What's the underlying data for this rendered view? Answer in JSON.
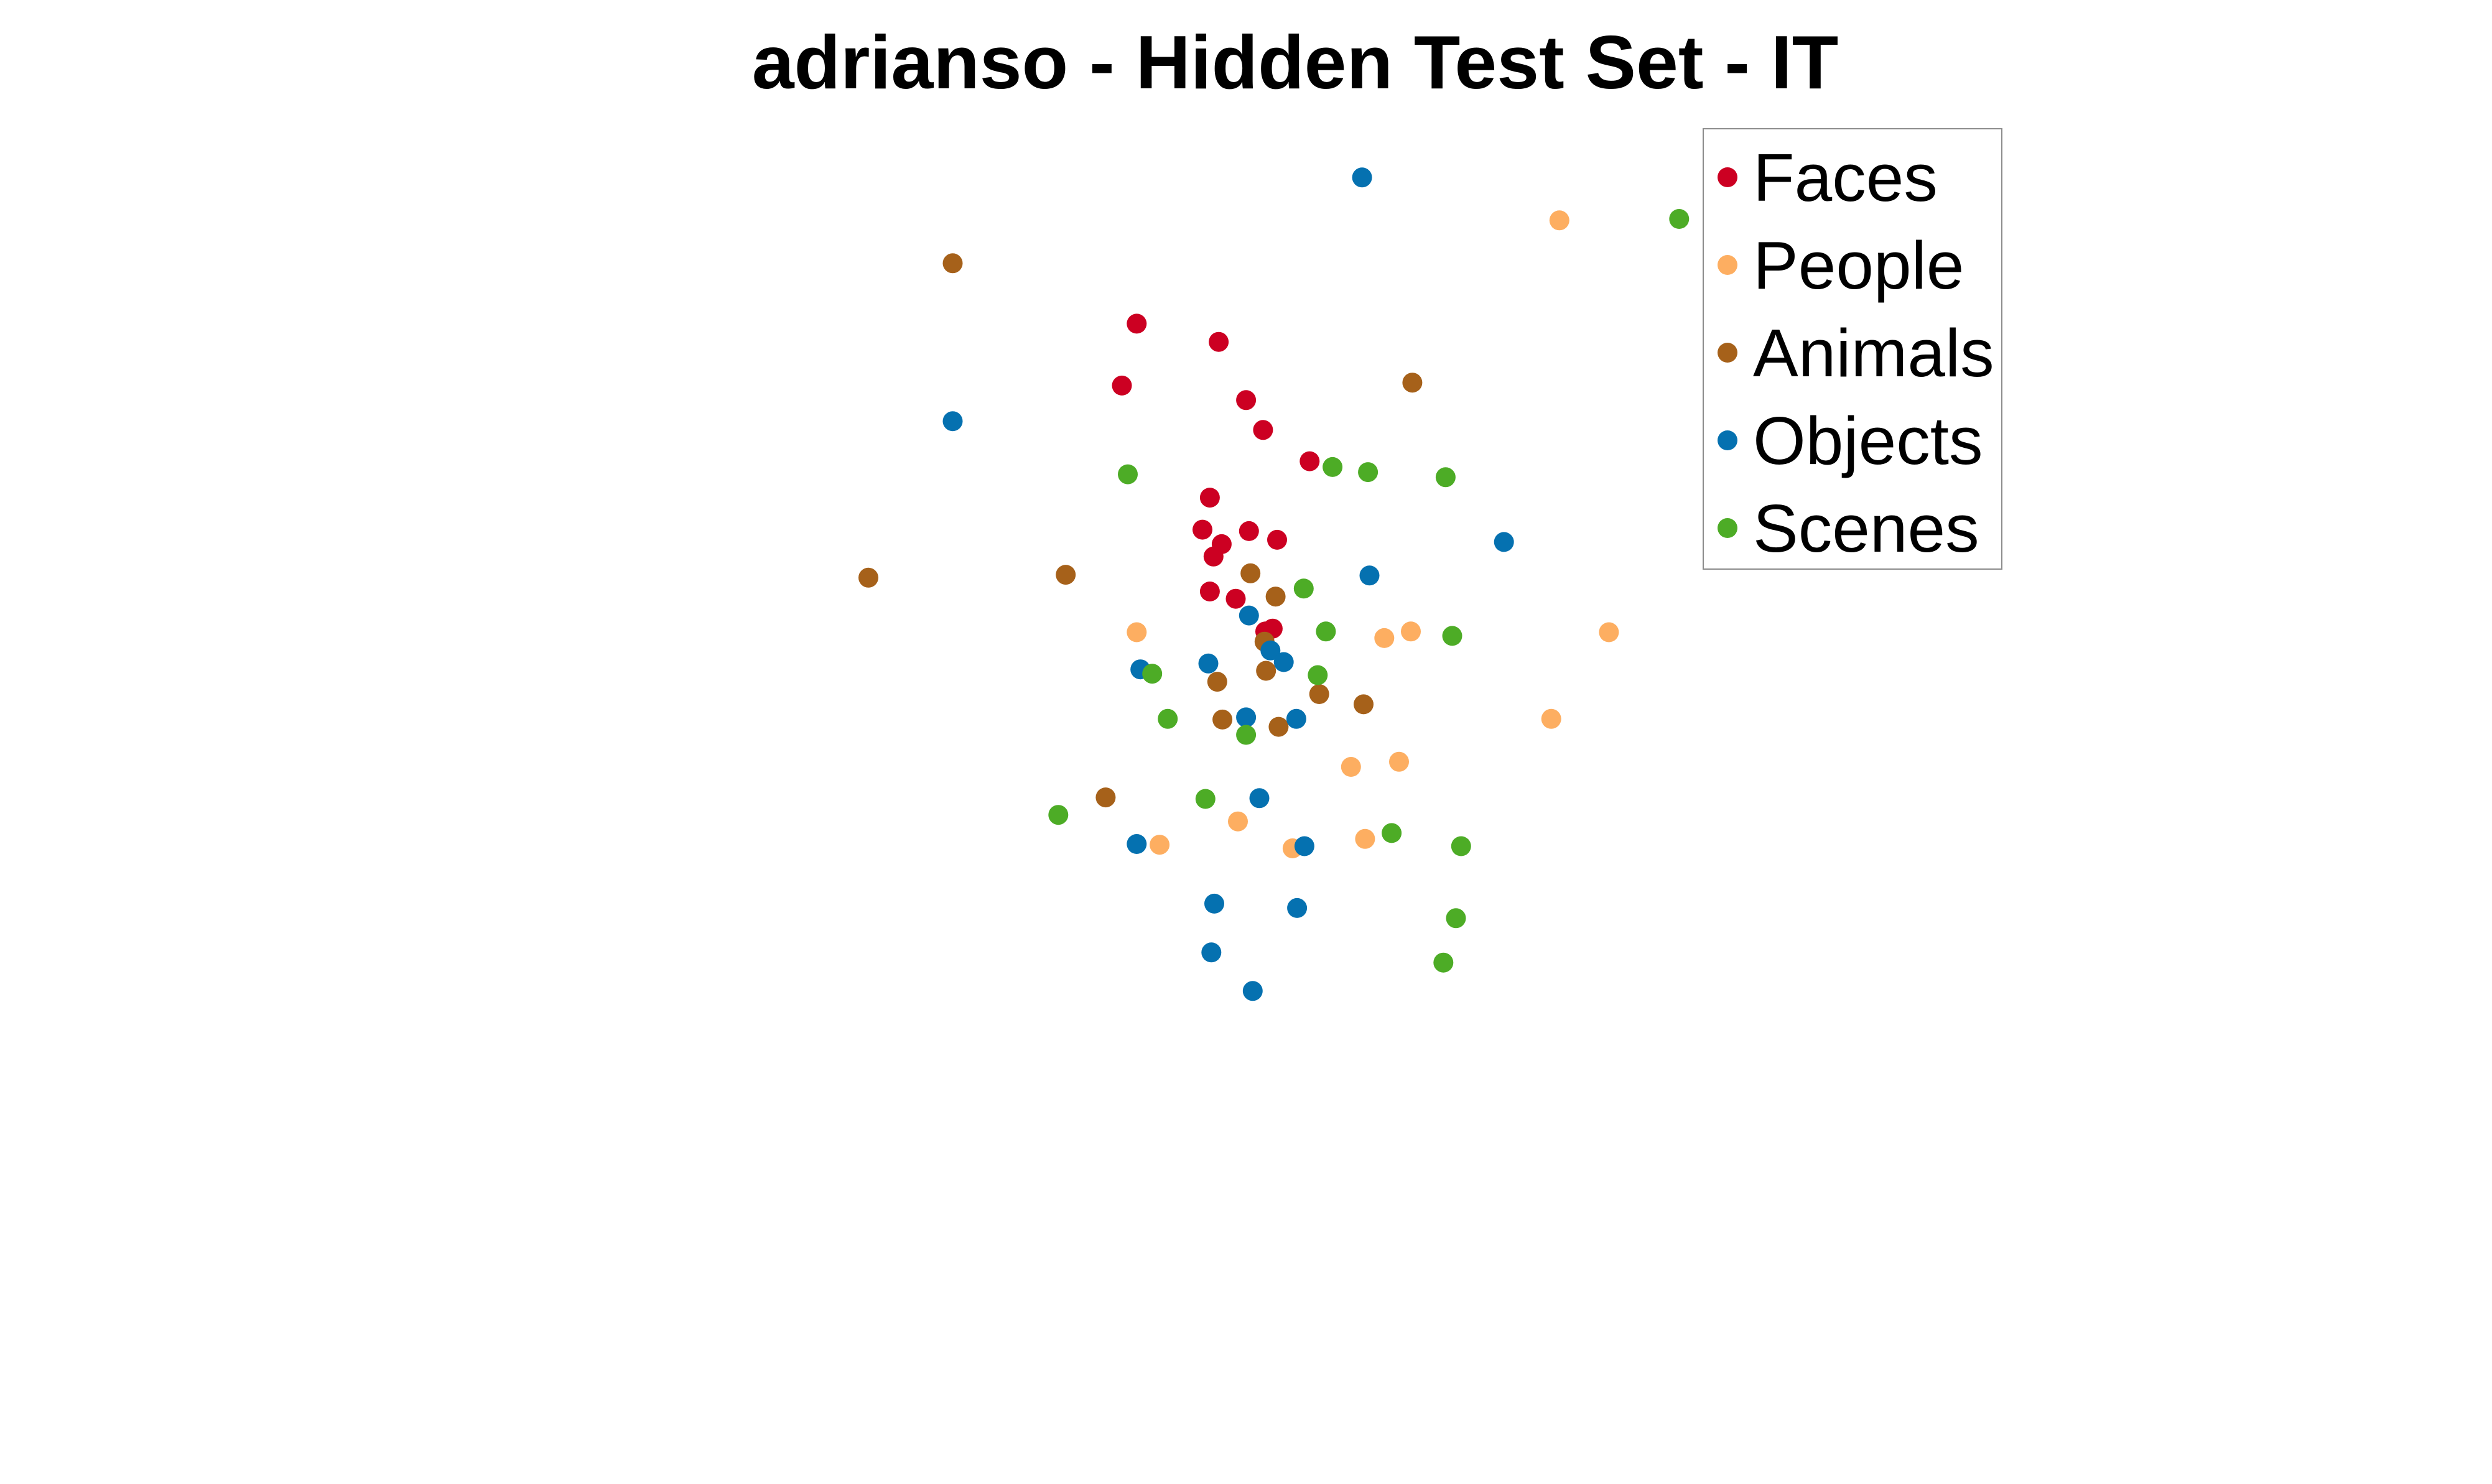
{
  "chart_data": {
    "type": "scatter",
    "title": "adrianso - Hidden Test Set - IT",
    "xlabel": "",
    "ylabel": "",
    "axes_visible": false,
    "grid": false,
    "legend_position": "top-right",
    "xlim": [
      -1.0,
      1.0
    ],
    "ylim": [
      -1.0,
      1.0
    ],
    "series": [
      {
        "name": "Faces",
        "color": "#cc0022",
        "points": [
          [
            -0.206,
            0.568
          ],
          [
            -0.095,
            0.543
          ],
          [
            -0.226,
            0.483
          ],
          [
            -0.058,
            0.463
          ],
          [
            -0.035,
            0.422
          ],
          [
            0.028,
            0.379
          ],
          [
            -0.107,
            0.329
          ],
          [
            -0.117,
            0.285
          ],
          [
            -0.054,
            0.283
          ],
          [
            -0.016,
            0.271
          ],
          [
            -0.091,
            0.265
          ],
          [
            -0.102,
            0.248
          ],
          [
            -0.107,
            0.2
          ],
          [
            -0.072,
            0.19
          ],
          [
            -0.022,
            0.149
          ],
          [
            -0.032,
            0.145
          ]
        ]
      },
      {
        "name": "People",
        "color": "#fdae61",
        "points": [
          [
            0.366,
            0.71
          ],
          [
            -0.206,
            0.144
          ],
          [
            0.129,
            0.136
          ],
          [
            0.165,
            0.145
          ],
          [
            0.433,
            0.144
          ],
          [
            0.355,
            0.025
          ],
          [
            0.084,
            -0.041
          ],
          [
            0.149,
            -0.034
          ],
          [
            -0.069,
            -0.116
          ],
          [
            -0.175,
            -0.148
          ],
          [
            0.103,
            -0.14
          ],
          [
            0.005,
            -0.153
          ]
        ]
      },
      {
        "name": "Animals",
        "color": "#a6611a",
        "points": [
          [
            -0.455,
            0.651
          ],
          [
            0.167,
            0.487
          ],
          [
            -0.569,
            0.219
          ],
          [
            -0.302,
            0.223
          ],
          [
            -0.052,
            0.225
          ],
          [
            -0.018,
            0.193
          ],
          [
            -0.033,
            0.131
          ],
          [
            -0.031,
            0.091
          ],
          [
            -0.097,
            0.076
          ],
          [
            0.041,
            0.059
          ],
          [
            0.101,
            0.045
          ],
          [
            -0.09,
            0.024
          ],
          [
            -0.014,
            0.014
          ],
          [
            -0.248,
            -0.083
          ]
        ]
      },
      {
        "name": "Objects",
        "color": "#0571b0",
        "points": [
          [
            0.099,
            0.769
          ],
          [
            -0.455,
            0.434
          ],
          [
            0.291,
            0.268
          ],
          [
            0.109,
            0.222
          ],
          [
            -0.054,
            0.167
          ],
          [
            -0.025,
            0.119
          ],
          [
            -0.007,
            0.103
          ],
          [
            -0.109,
            0.101
          ],
          [
            -0.201,
            0.093
          ],
          [
            -0.058,
            0.027
          ],
          [
            0.01,
            0.025
          ],
          [
            -0.04,
            -0.084
          ],
          [
            -0.206,
            -0.147
          ],
          [
            0.021,
            -0.15
          ],
          [
            -0.101,
            -0.229
          ],
          [
            0.011,
            -0.235
          ],
          [
            -0.105,
            -0.296
          ],
          [
            -0.049,
            -0.349
          ]
        ]
      },
      {
        "name": "Scenes",
        "color": "#4dac26",
        "points": [
          [
            0.528,
            0.712
          ],
          [
            -0.218,
            0.361
          ],
          [
            0.059,
            0.371
          ],
          [
            0.107,
            0.364
          ],
          [
            0.212,
            0.357
          ],
          [
            0.221,
            0.139
          ],
          [
            0.02,
            0.204
          ],
          [
            0.05,
            0.145
          ],
          [
            -0.185,
            0.087
          ],
          [
            0.039,
            0.085
          ],
          [
            -0.164,
            0.025
          ],
          [
            -0.058,
            0.003
          ],
          [
            -0.312,
            -0.107
          ],
          [
            -0.113,
            -0.085
          ],
          [
            0.139,
            -0.132
          ],
          [
            0.233,
            -0.15
          ],
          [
            0.226,
            -0.249
          ],
          [
            0.209,
            -0.31
          ]
        ]
      }
    ]
  }
}
